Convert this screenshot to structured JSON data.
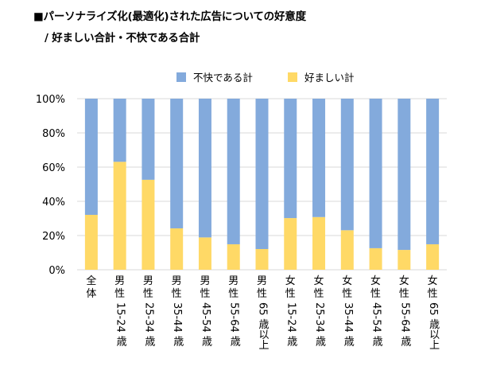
{
  "title": "■パーソナライズ化(最適化)された広告についての好意度",
  "subtitle": "/ 好ましい合計・不快である合計",
  "chart_data": {
    "type": "bar",
    "stacked": true,
    "percent_stacked": true,
    "title": "■パーソナライズ化(最適化)された広告についての好意度 / 好ましい合計・不快である合計",
    "xlabel": "",
    "ylabel": "",
    "ylim": [
      0,
      100
    ],
    "yticks": [
      "0%",
      "20%",
      "40%",
      "60%",
      "80%",
      "100%"
    ],
    "grid": true,
    "legend_position": "top",
    "categories": [
      {
        "line1": "全体",
        "line2": ""
      },
      {
        "line1": "男性",
        "line2": "15-24 歳"
      },
      {
        "line1": "男性",
        "line2": "25-34 歳"
      },
      {
        "line1": "男性",
        "line2": "35-44 歳"
      },
      {
        "line1": "男性",
        "line2": "45-54 歳"
      },
      {
        "line1": "男性",
        "line2": "55-64 歳"
      },
      {
        "line1": "男性",
        "line2": "65 歳以上"
      },
      {
        "line1": "女性",
        "line2": "15-24 歳"
      },
      {
        "line1": "女性",
        "line2": "25-34 歳"
      },
      {
        "line1": "女性",
        "line2": "35-44 歳"
      },
      {
        "line1": "女性",
        "line2": "45-54 歳"
      },
      {
        "line1": "女性",
        "line2": "55-64 歳"
      },
      {
        "line1": "女性",
        "line2": "65 歳以上"
      }
    ],
    "category_names": [
      "全体",
      "男性 15-24 歳",
      "男性 25-34 歳",
      "男性 35-44 歳",
      "男性 45-54 歳",
      "男性 55-64 歳",
      "男性 65 歳以上",
      "女性 15-24 歳",
      "女性 25-34 歳",
      "女性 35-44 歳",
      "女性 45-54 歳",
      "女性 55-64 歳",
      "女性 65 歳以上"
    ],
    "series": [
      {
        "name": "好ましい計",
        "color": "#FFD966",
        "values": [
          32.1,
          63.1,
          52.6,
          24.2,
          18.9,
          14.9,
          12.1,
          30.2,
          30.8,
          23.1,
          12.6,
          11.6,
          14.9
        ]
      },
      {
        "name": "不快である計",
        "color": "#83AADC",
        "values": [
          67.9,
          36.9,
          47.4,
          75.8,
          81.1,
          85.1,
          87.9,
          69.8,
          69.2,
          76.9,
          87.4,
          88.4,
          85.1
        ]
      }
    ],
    "legend": [
      {
        "name": "不快である計",
        "color": "#83AADC"
      },
      {
        "name": "好ましい計",
        "color": "#FFD966"
      }
    ]
  },
  "colors": {
    "gridline": "#D9D9D9",
    "favorable": "#FFD966",
    "unfavorable": "#83AADC"
  }
}
